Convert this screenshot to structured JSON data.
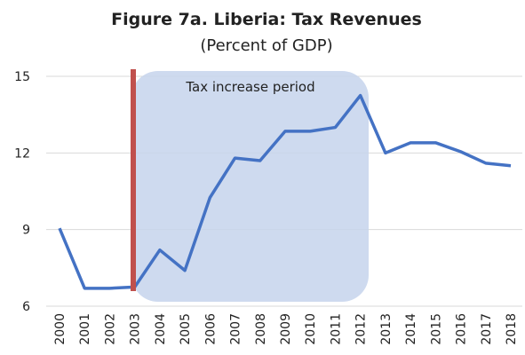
{
  "chart_data": {
    "type": "line",
    "title": "Figure 7a. Liberia: Tax Revenues",
    "subtitle": "(Percent of GDP)",
    "annotation": "Tax increase period",
    "categories": [
      "2000",
      "2001",
      "2002",
      "2003",
      "2004",
      "2005",
      "2006",
      "2007",
      "2008",
      "2009",
      "2010",
      "2011",
      "2012",
      "2013",
      "2014",
      "2015",
      "2016",
      "2017",
      "2018"
    ],
    "series": [
      {
        "name": "Tax revenues",
        "color": "#4472c4",
        "values": [
          9.05,
          6.7,
          6.7,
          6.75,
          8.2,
          7.4,
          10.25,
          11.8,
          11.7,
          12.85,
          12.85,
          13.0,
          14.25,
          12.0,
          12.4,
          12.4,
          12.05,
          11.6,
          11.5
        ]
      }
    ],
    "ylim": [
      6,
      15
    ],
    "yticks": [
      6,
      9,
      12,
      15
    ],
    "grid": true
  }
}
